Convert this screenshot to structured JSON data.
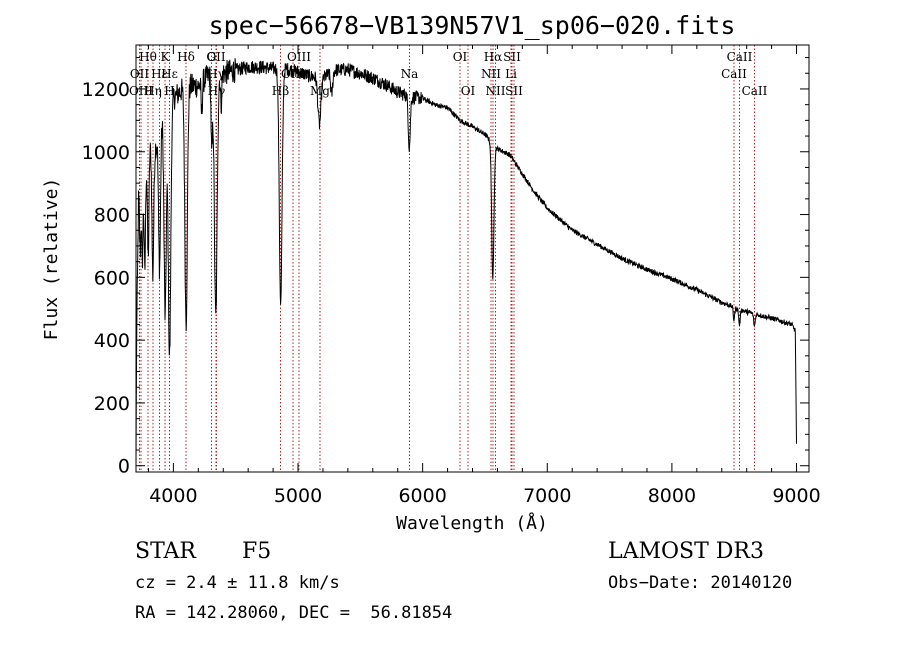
{
  "chart_data": {
    "type": "line",
    "title": "spec−56678−VB139N57V1_sp06−020.fits",
    "xlabel": "Wavelength (Å)",
    "ylabel": "Flux (relative)",
    "xlim": [
      3700,
      9100
    ],
    "ylim": [
      -20,
      1340
    ],
    "xticks": [
      4000,
      5000,
      6000,
      7000,
      8000,
      9000
    ],
    "yticks": [
      0,
      200,
      400,
      600,
      800,
      1000,
      1200
    ],
    "line_color": "#000000",
    "marker_color": "#b22222",
    "spectrum_anchors": [
      [
        3700,
        0
      ],
      [
        3705,
        380
      ],
      [
        3720,
        850
      ],
      [
        3740,
        900
      ],
      [
        3760,
        870
      ],
      [
        3800,
        1020
      ],
      [
        3850,
        1000
      ],
      [
        3900,
        1100
      ],
      [
        4000,
        1170
      ],
      [
        4100,
        1210
      ],
      [
        4200,
        1210
      ],
      [
        4300,
        1250
      ],
      [
        4400,
        1250
      ],
      [
        4500,
        1260
      ],
      [
        4600,
        1270
      ],
      [
        4700,
        1270
      ],
      [
        4800,
        1265
      ],
      [
        4900,
        1265
      ],
      [
        5000,
        1255
      ],
      [
        5100,
        1240
      ],
      [
        5200,
        1235
      ],
      [
        5300,
        1260
      ],
      [
        5400,
        1262
      ],
      [
        5500,
        1250
      ],
      [
        5600,
        1235
      ],
      [
        5700,
        1215
      ],
      [
        5800,
        1190
      ],
      [
        5900,
        1175
      ],
      [
        6000,
        1170
      ],
      [
        6100,
        1150
      ],
      [
        6200,
        1140
      ],
      [
        6300,
        1100
      ],
      [
        6400,
        1080
      ],
      [
        6500,
        1055
      ],
      [
        6600,
        1010
      ],
      [
        6700,
        990
      ],
      [
        6800,
        930
      ],
      [
        6900,
        870
      ],
      [
        7000,
        820
      ],
      [
        7200,
        750
      ],
      [
        7400,
        705
      ],
      [
        7600,
        660
      ],
      [
        7800,
        625
      ],
      [
        8000,
        595
      ],
      [
        8200,
        560
      ],
      [
        8400,
        520
      ],
      [
        8600,
        490
      ],
      [
        8800,
        470
      ],
      [
        8960,
        450
      ],
      [
        8990,
        430
      ],
      [
        9000,
        70
      ]
    ],
    "absorption_lines": [
      {
        "wl": 3734,
        "depth": 200,
        "width": 5
      },
      {
        "wl": 3750,
        "depth": 250,
        "width": 5
      },
      {
        "wl": 3771,
        "depth": 300,
        "width": 5
      },
      {
        "wl": 3798,
        "depth": 350,
        "width": 6
      },
      {
        "wl": 3835,
        "depth": 400,
        "width": 7
      },
      {
        "wl": 3889,
        "depth": 450,
        "width": 8
      },
      {
        "wl": 3934,
        "depth": 650,
        "width": 9
      },
      {
        "wl": 3969,
        "depth": 800,
        "width": 10
      },
      {
        "wl": 4102,
        "depth": 750,
        "width": 10
      },
      {
        "wl": 4227,
        "depth": 100,
        "width": 5
      },
      {
        "wl": 4308,
        "depth": 250,
        "width": 6
      },
      {
        "wl": 4340,
        "depth": 780,
        "width": 11
      },
      {
        "wl": 4383,
        "depth": 100,
        "width": 5
      },
      {
        "wl": 4861,
        "depth": 750,
        "width": 11
      },
      {
        "wl": 5172,
        "depth": 150,
        "width": 12
      },
      {
        "wl": 5270,
        "depth": 70,
        "width": 8
      },
      {
        "wl": 5893,
        "depth": 160,
        "width": 8
      },
      {
        "wl": 6563,
        "depth": 430,
        "width": 9
      },
      {
        "wl": 8498,
        "depth": 40,
        "width": 6
      },
      {
        "wl": 8542,
        "depth": 50,
        "width": 6
      },
      {
        "wl": 8662,
        "depth": 40,
        "width": 6
      }
    ],
    "spectral_lines": [
      {
        "label": "Hθ",
        "wl": 3798,
        "row": 0
      },
      {
        "label": "OII",
        "wl": 3727,
        "row": 1
      },
      {
        "label": "OIII",
        "wl": 3740,
        "row": 2
      },
      {
        "label": "K",
        "wl": 3934,
        "row": 0
      },
      {
        "label": "Hη",
        "wl": 3835,
        "row": 2
      },
      {
        "label": "Hε",
        "wl": 3889,
        "row": 1
      },
      {
        "label": "H",
        "wl": 3969,
        "row": 2
      },
      {
        "label": "Hε",
        "wl": 3970,
        "row": 1
      },
      {
        "label": "Hδ",
        "wl": 4102,
        "row": 0
      },
      {
        "label": "G",
        "wl": 4304,
        "row": 0
      },
      {
        "label": "OII",
        "wl": 4340,
        "row": 0
      },
      {
        "label": "Hγ",
        "wl": 4341,
        "row": 1
      },
      {
        "label": "Hγ",
        "wl": 4345,
        "row": 2
      },
      {
        "label": "OIII",
        "wl": 5007,
        "row": 0
      },
      {
        "label": "OIII",
        "wl": 4959,
        "row": 1
      },
      {
        "label": "Hβ",
        "wl": 4861,
        "row": 2
      },
      {
        "label": "Mg",
        "wl": 5176,
        "row": 2
      },
      {
        "label": "Na",
        "wl": 5893,
        "row": 1
      },
      {
        "label": "OI",
        "wl": 6300,
        "row": 0
      },
      {
        "label": "OI",
        "wl": 6364,
        "row": 2
      },
      {
        "label": "Hα",
        "wl": 6563,
        "row": 0
      },
      {
        "label": "NII",
        "wl": 6548,
        "row": 1
      },
      {
        "label": "NII",
        "wl": 6583,
        "row": 2
      },
      {
        "label": "SII",
        "wl": 6716,
        "row": 0
      },
      {
        "label": "Li",
        "wl": 6708,
        "row": 1
      },
      {
        "label": "SII",
        "wl": 6731,
        "row": 2
      },
      {
        "label": "CaII",
        "wl": 8542,
        "row": 0
      },
      {
        "label": "CaII",
        "wl": 8498,
        "row": 1
      },
      {
        "label": "CaII",
        "wl": 8662,
        "row": 2
      }
    ],
    "annotations": []
  },
  "info": {
    "object_type": "STAR",
    "subclass": "F5",
    "cz": "cz = 2.4 ± 11.8 km/s",
    "coords": "RA = 142.28060, DEC =  56.81854",
    "survey": "LAMOST DR3",
    "obs_date": "Obs−Date: 20140120"
  }
}
